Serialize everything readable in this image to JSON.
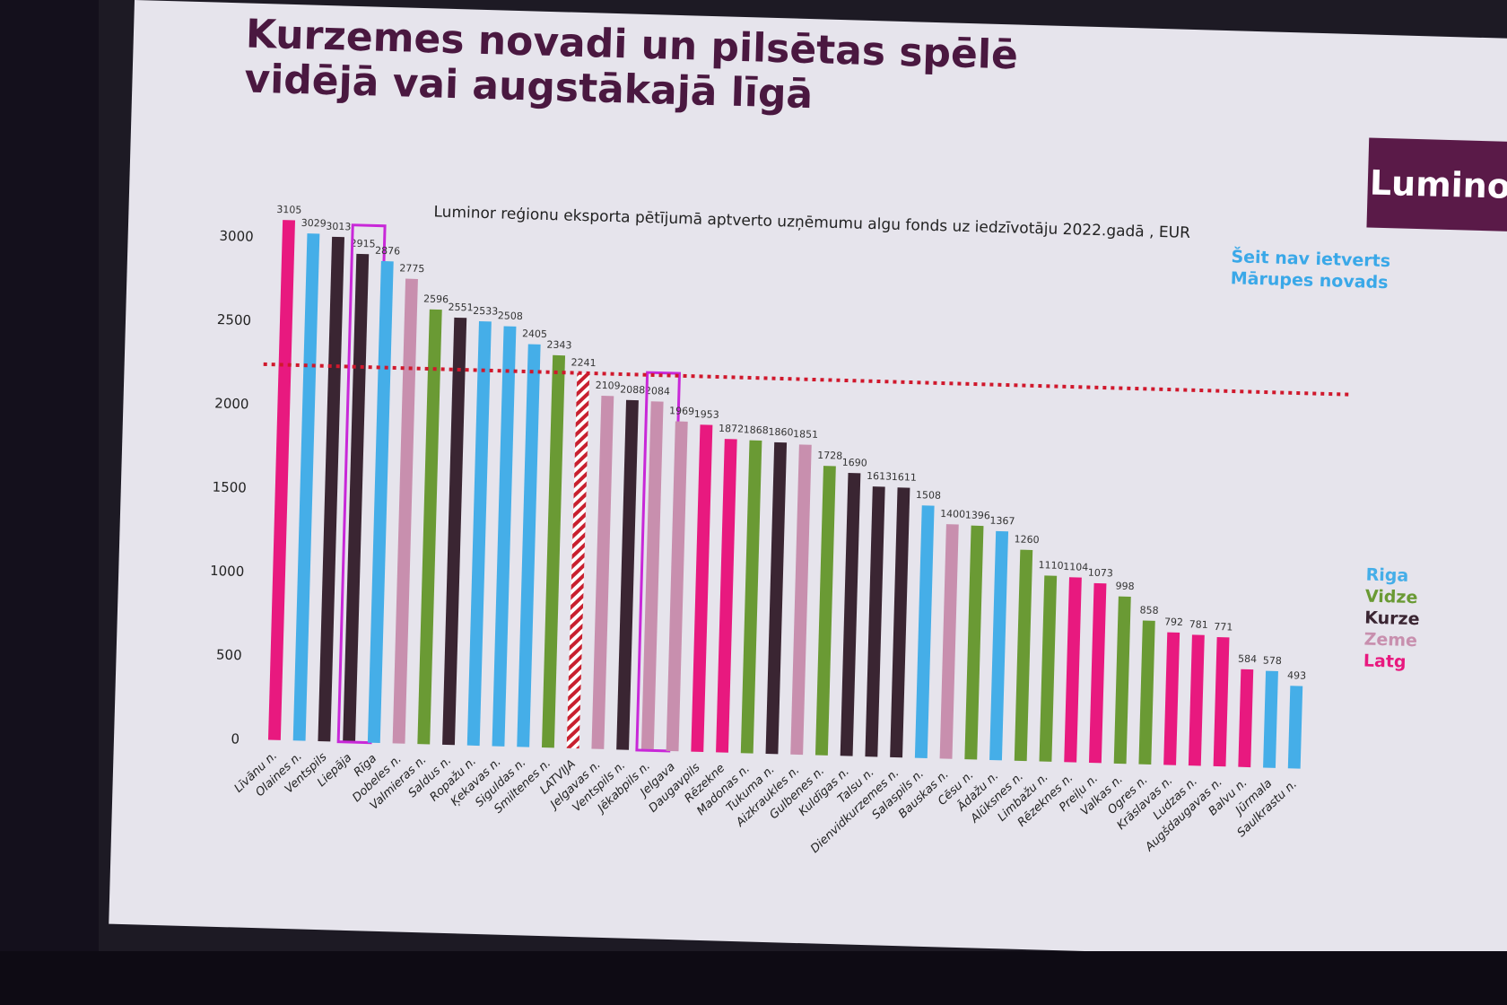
{
  "slide": {
    "title": "Kurzemes novadi un pilsētas spēlē vidējā vai augstākajā līgā",
    "logo": "Luminor",
    "note_line1": "Šeit nav ietverts",
    "note_line2": "Mārupes novads"
  },
  "chart_data": {
    "type": "bar",
    "title": "Luminor reģionu eksporta pētījumā aptverto uzņēmumu algu fonds uz iedzīvotāju 2022.gadā , EUR",
    "xlabel": "",
    "ylabel": "",
    "ylim": [
      0,
      3200
    ],
    "yticks": [
      0,
      500,
      1000,
      1500,
      2000,
      2500,
      3000
    ],
    "grid": false,
    "data_labels": true,
    "categories": [
      "Līvānu n.",
      "Olaines n.",
      "Ventspils",
      "Liepāja",
      "Rīga",
      "Dobeles n.",
      "Valmieras n.",
      "Saldus n.",
      "Ropažu n.",
      "Ķekavas n.",
      "Siguldas n.",
      "Smiltenes n.",
      "LATVIJA",
      "Jelgavas n.",
      "Ventspils n.",
      "Jēkabpils n.",
      "Jelgava",
      "Daugavpils",
      "Rēzekne",
      "Madonas n.",
      "Tukuma n.",
      "Aizkraukles n.",
      "Gulbenes n.",
      "Kuldīgas n.",
      "Talsu n.",
      "Dienvidkurzemes n.",
      "Salaspils n.",
      "Bauskas n.",
      "Cēsu n.",
      "Ādažu n.",
      "Alūksnes n.",
      "Limbažu n.",
      "Rēzeknes n.",
      "Preiļu n.",
      "Valkas n.",
      "Ogres n.",
      "Krāslavas n.",
      "Ludzas n.",
      "Augšdaugavas n.",
      "Balvu n.",
      "Jūrmala",
      "Saulkrastu n."
    ],
    "values": [
      3105,
      3029,
      3013,
      2915,
      2876,
      2775,
      2596,
      2551,
      2533,
      2508,
      2405,
      2343,
      2241,
      2109,
      2088,
      2084,
      1969,
      1953,
      1872,
      1868,
      1860,
      1851,
      1728,
      1690,
      1613,
      1611,
      1508,
      1400,
      1396,
      1367,
      1260,
      1110,
      1104,
      1073,
      998,
      858,
      792,
      781,
      771,
      584,
      578,
      493
    ],
    "regions": [
      "Latg",
      "Riga",
      "Kurze",
      "Kurze",
      "Riga",
      "Zeme",
      "Vidze",
      "Kurze",
      "Riga",
      "Riga",
      "Riga",
      "Vidze",
      "LATVIJA",
      "Zeme",
      "Kurze",
      "Zeme",
      "Zeme",
      "Latg",
      "Latg",
      "Vidze",
      "Kurze",
      "Zeme",
      "Vidze",
      "Kurze",
      "Kurze",
      "Kurze",
      "Riga",
      "Zeme",
      "Vidze",
      "Riga",
      "Vidze",
      "Vidze",
      "Latg",
      "Latg",
      "Vidze",
      "Vidze",
      "Latg",
      "Latg",
      "Latg",
      "Latg",
      "Riga",
      "Riga"
    ],
    "highlighted": [
      "Liepāja",
      "Jēkabpils n."
    ],
    "reference_line": {
      "value": 2241,
      "style": "dotted",
      "color": "#d0182c"
    },
    "legend": [
      {
        "name": "Riga",
        "color": "#45aee8"
      },
      {
        "name": "Vidze",
        "color": "#6a9a34"
      },
      {
        "name": "Kurze",
        "color": "#3a2532"
      },
      {
        "name": "Zeme",
        "color": "#c88fae"
      },
      {
        "name": "Latg",
        "color": "#e8197f"
      }
    ],
    "latvija_color": "#c8202f",
    "highlight_color": "#c828d8",
    "legend_position": "right"
  }
}
